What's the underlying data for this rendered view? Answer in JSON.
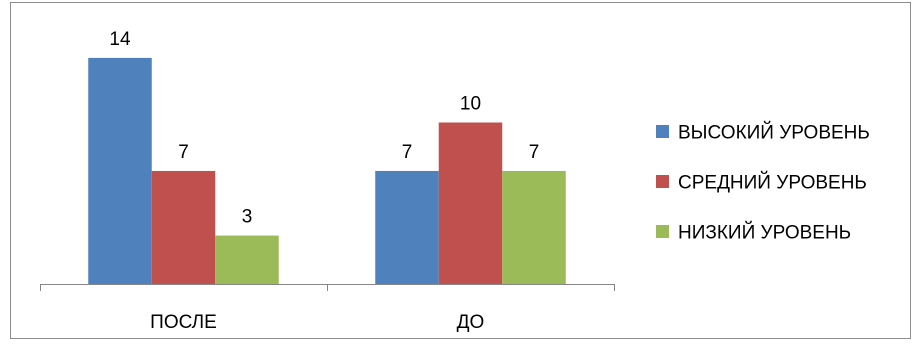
{
  "chart_data": {
    "type": "bar",
    "categories": [
      "ПОСЛЕ",
      "ДО"
    ],
    "series": [
      {
        "name": "ВЫСОКИЙ УРОВЕНЬ",
        "values": [
          14,
          7
        ],
        "color": "#4F81BD"
      },
      {
        "name": "СРЕДНИЙ УРОВЕНЬ",
        "values": [
          7,
          10
        ],
        "color": "#C0504D"
      },
      {
        "name": "НИЗКИЙ УРОВЕНЬ",
        "values": [
          3,
          7
        ],
        "color": "#9BBB59"
      }
    ],
    "title": "",
    "xlabel": "",
    "ylabel": "",
    "ylim": [
      0,
      14
    ],
    "grid": false,
    "legend": "right",
    "data_labels": true
  }
}
